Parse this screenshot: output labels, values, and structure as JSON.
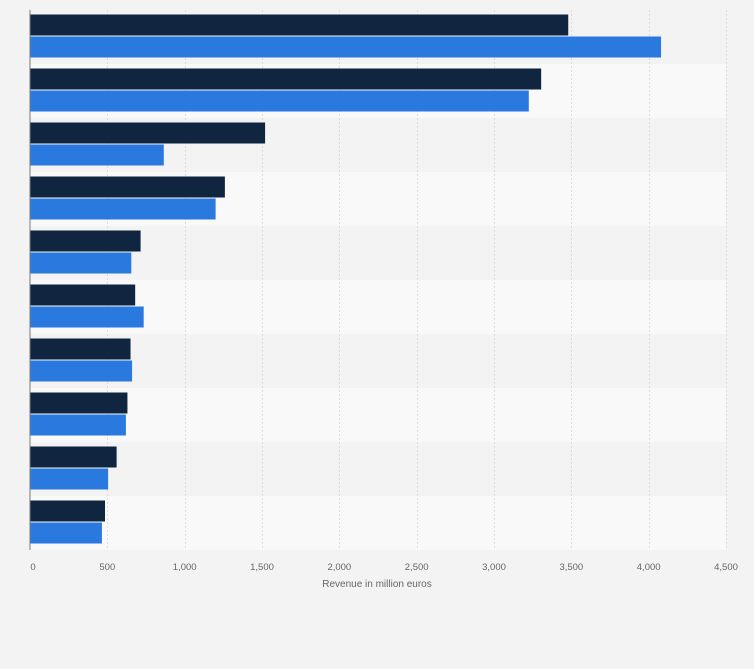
{
  "chart_data": {
    "type": "bar",
    "orientation": "horizontal",
    "title": "",
    "xlabel": "Revenue in million euros",
    "ylabel": "",
    "xlim": [
      0,
      4500
    ],
    "xticks": [
      0,
      500,
      1000,
      1500,
      2000,
      2500,
      3000,
      3500,
      4000,
      4500
    ],
    "xtick_labels": [
      "0",
      "500",
      "1,000",
      "1,500",
      "2,000",
      "2,500",
      "3,000",
      "3,500",
      "4,000",
      "4,500"
    ],
    "categories": [
      "",
      "",
      "",
      "",
      "",
      "",
      "",
      "",
      "",
      ""
    ],
    "grid": true,
    "legend": "none",
    "series": [
      {
        "name": "",
        "color": "#0f2540",
        "values": [
          3480,
          3305,
          1520,
          1260,
          715,
          680,
          650,
          630,
          560,
          485
        ]
      },
      {
        "name": "",
        "color": "#2a79de",
        "values": [
          4080,
          3225,
          865,
          1200,
          655,
          735,
          660,
          620,
          505,
          465
        ]
      }
    ]
  }
}
